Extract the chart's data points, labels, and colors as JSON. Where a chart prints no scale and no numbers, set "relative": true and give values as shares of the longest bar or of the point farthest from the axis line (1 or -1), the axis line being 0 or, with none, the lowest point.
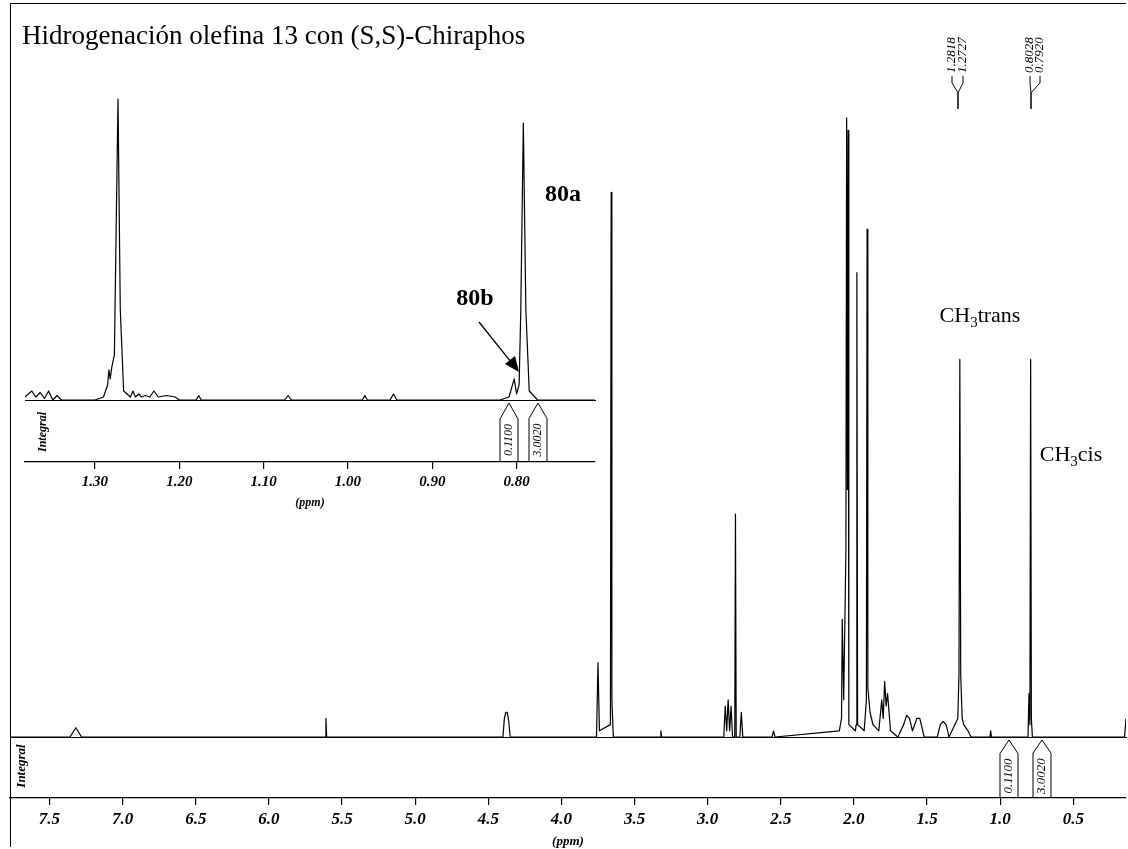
{
  "chart_data": [
    {
      "type": "line",
      "title": "Hidrogenación olefina 13 con (S,S)-Chiraphos",
      "xlabel": "(ppm)",
      "relative": true,
      "marker": "none",
      "xlim": [
        7.77,
        0.14
      ],
      "xticks": [
        7.5,
        {
          "value": 7,
          "label": "7.0"
        },
        6.5,
        {
          "value": 6,
          "label": "6.0"
        },
        5.5,
        {
          "value": 5,
          "label": "5.0"
        },
        4.5,
        {
          "value": 4,
          "label": "4.0"
        },
        3.5,
        {
          "value": 3,
          "label": "3.0"
        },
        2.5,
        {
          "value": 2,
          "label": "2.0"
        },
        1.5,
        {
          "value": 1,
          "label": "1.0"
        },
        0.5
      ],
      "x": [
        7.77,
        7.36,
        7.32,
        7.28,
        5.615,
        5.61,
        5.605,
        4.4,
        4.39,
        4.38,
        4.37,
        4.36,
        4.35,
        3.76,
        3.75,
        3.74,
        3.665,
        3.66,
        3.655,
        3.645,
        3.325,
        3.32,
        3.315,
        2.89,
        2.88,
        2.87,
        2.86,
        2.85,
        2.84,
        2.83,
        2.815,
        2.81,
        2.805,
        2.78,
        2.77,
        2.76,
        2.56,
        2.55,
        2.54,
        2.1,
        2.085,
        2.08,
        2.07,
        2.055,
        2.05,
        2.045,
        2.04,
        2.035,
        1.99,
        1.985,
        1.98,
        1.975,
        1.93,
        1.915,
        1.91,
        1.905,
        1.89,
        1.87,
        1.83,
        1.81,
        1.8,
        1.79,
        1.78,
        1.77,
        1.75,
        1.7,
        1.66,
        1.64,
        1.62,
        1.6,
        1.57,
        1.55,
        1.52,
        1.43,
        1.41,
        1.39,
        1.37,
        1.35,
        1.29,
        1.282,
        1.276,
        1.27,
        1.26,
        1.25,
        1.22,
        1.2,
        1.07,
        1.065,
        1.06,
        0.81,
        0.803,
        0.797,
        0.792,
        0.787,
        0.78,
        0.15,
        0.14
      ],
      "series": [
        {
          "color": "#000000",
          "values": [
            0,
            0,
            0.015,
            0,
            0,
            0.03,
            0,
            0,
            0.03,
            0.04,
            0.04,
            0.025,
            0,
            0,
            0.12,
            0.01,
            0.02,
            0.88,
            0.06,
            0,
            0,
            0.01,
            0,
            0,
            0.05,
            0.01,
            0.06,
            0.01,
            0.05,
            0,
            0,
            0.36,
            0,
            0,
            0.04,
            0,
            0,
            0.01,
            0,
            0.01,
            0.03,
            0.19,
            0.06,
            0.3,
            1,
            0.4,
            0.98,
            0.02,
            0.01,
            0.02,
            0.75,
            0.02,
            0.01,
            0.06,
            0.82,
            0.08,
            0.04,
            0.02,
            0.01,
            0.06,
            0.03,
            0.09,
            0.05,
            0.07,
            0.01,
            0,
            0.02,
            0.035,
            0.03,
            0.01,
            0.03,
            0.03,
            0,
            0,
            0.02,
            0.025,
            0.02,
            0,
            0.03,
            0.1,
            0.61,
            0.1,
            0.03,
            0.02,
            0.01,
            0,
            0,
            0.01,
            0,
            0,
            0.07,
            0.02,
            0.61,
            0.03,
            0,
            0,
            0.03
          ]
        }
      ],
      "annotations": [
        "Integral",
        "0.1100",
        "3.0020",
        "1.2818",
        "1.2727",
        "0.8028",
        "0.7920",
        "CH$_{3}$trans",
        "CH$_{3}$cis"
      ]
    },
    {
      "type": "line",
      "xlabel": "(ppm)",
      "relative": true,
      "marker": "none",
      "xlim": [
        1.383,
        0.707
      ],
      "xticks": [
        {
          "value": 1.3,
          "label": "1.30"
        },
        {
          "value": 1.2,
          "label": "1.20"
        },
        {
          "value": 1.1,
          "label": "1.10"
        },
        {
          "value": 1,
          "label": "1.00"
        },
        {
          "value": 0.9,
          "label": "0.90"
        },
        {
          "value": 0.8,
          "label": "0.80"
        }
      ],
      "x": [
        1.383,
        1.375,
        1.37,
        1.365,
        1.36,
        1.355,
        1.35,
        1.345,
        1.34,
        1.3,
        1.29,
        1.285,
        1.2835,
        1.282,
        1.28,
        1.277,
        1.2727,
        1.27,
        1.266,
        1.262,
        1.258,
        1.255,
        1.252,
        1.248,
        1.245,
        1.24,
        1.235,
        1.23,
        1.225,
        1.215,
        1.205,
        1.2,
        1.18,
        1.177,
        1.174,
        1.075,
        1.071,
        1.067,
        0.983,
        0.98,
        0.977,
        0.95,
        0.946,
        0.942,
        0.82,
        0.809,
        0.8028,
        0.8,
        0.797,
        0.795,
        0.792,
        0.789,
        0.785,
        0.775,
        0.707
      ],
      "series": [
        {
          "color": "#000000",
          "values": [
            0.01,
            0.03,
            0.01,
            0.025,
            0.005,
            0.03,
            0,
            0.015,
            0,
            0,
            0.01,
            0.05,
            0.1,
            0.07,
            0.11,
            0.15,
            1,
            0.3,
            0.03,
            0.02,
            0.01,
            0.03,
            0.01,
            0.02,
            0.01,
            0.015,
            0.01,
            0.03,
            0.01,
            0.015,
            0.01,
            0,
            0,
            0.015,
            0,
            0,
            0.015,
            0,
            0,
            0.015,
            0,
            0,
            0.02,
            0,
            0,
            0.01,
            0.07,
            0.02,
            0.05,
            0.3,
            0.92,
            0.3,
            0.03,
            0,
            0
          ]
        }
      ],
      "annotations": [
        "Integral",
        "0.1100",
        "3.0020",
        "80a",
        "80b"
      ]
    }
  ]
}
